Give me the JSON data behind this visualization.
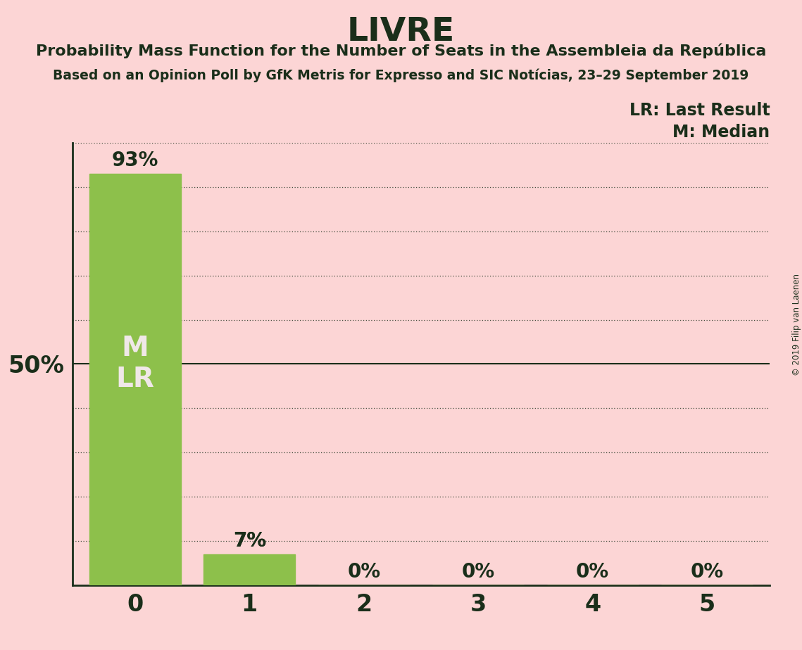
{
  "title": "LIVRE",
  "subtitle1": "Probability Mass Function for the Number of Seats in the Assembleia da República",
  "subtitle2": "Based on an Opinion Poll by GfK Metris for Expresso and SIC Notícias, 23–29 September 2019",
  "categories": [
    0,
    1,
    2,
    3,
    4,
    5
  ],
  "values": [
    0.93,
    0.07,
    0.0,
    0.0,
    0.0,
    0.0
  ],
  "bar_color": "#8dc04b",
  "background_color": "#fcd5d5",
  "text_color": "#1a2e1a",
  "y50_label": "50%",
  "median_seat": 0,
  "lr_seat": 0,
  "legend_lr": "LR: Last Result",
  "legend_m": "M: Median",
  "bar_label_color": "#f0e8e8",
  "copyright": "© 2019 Filip van Laenen",
  "ylim": [
    0,
    1.0
  ],
  "yticks": [
    0.1,
    0.2,
    0.3,
    0.4,
    0.5,
    0.6,
    0.7,
    0.8,
    0.9,
    1.0
  ]
}
